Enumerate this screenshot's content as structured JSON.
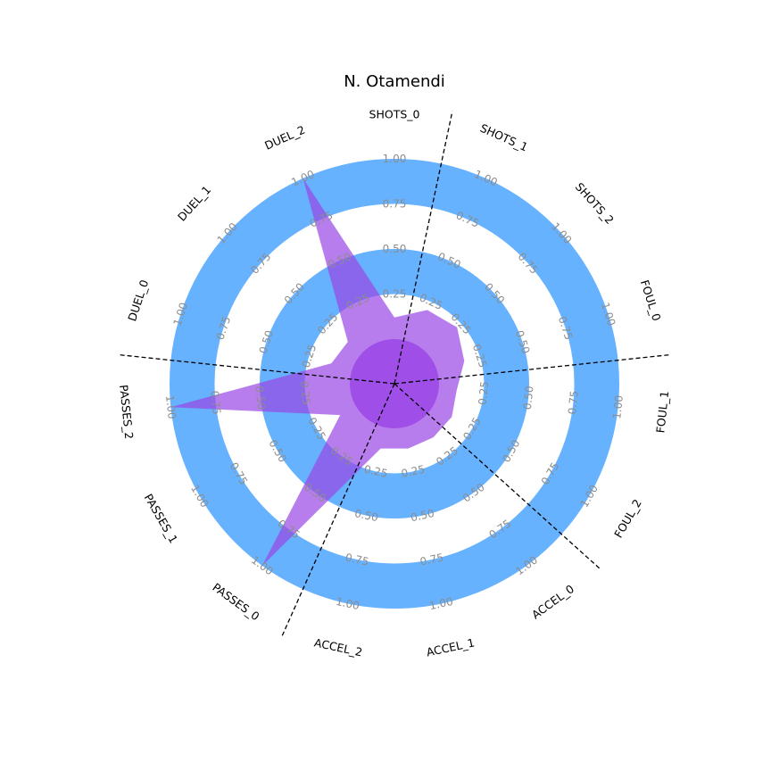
{
  "chart_data": {
    "type": "radar",
    "title": "N. Otamendi",
    "parameters": [
      "SHOTS_0",
      "SHOTS_1",
      "SHOTS_2",
      "FOUL_0",
      "FOUL_1",
      "FOUL_2",
      "ACCEL_0",
      "ACCEL_1",
      "ACCEL_2",
      "PASSES_0",
      "PASSES_1",
      "PASSES_2",
      "DUEL_0",
      "DUEL_1",
      "DUEL_2"
    ],
    "values": [
      0.12,
      0.2,
      0.22,
      0.16,
      0.1,
      0.12,
      0.12,
      0.12,
      0.12,
      1.0,
      0.1,
      1.0,
      0.12,
      0.1,
      1.0
    ],
    "range": [
      0,
      1
    ],
    "range_labels": [
      "0.25",
      "0.50",
      "0.75",
      "1.00"
    ],
    "dividers_after": [
      "SHOTS_0",
      "FOUL_0",
      "FOUL_2",
      "ACCEL_2",
      "PASSES_2"
    ],
    "colors": {
      "ring": "#66b2ff",
      "polygon": "#9a46e6",
      "divider": "#000000",
      "range_label": "#8c8c8c"
    }
  }
}
